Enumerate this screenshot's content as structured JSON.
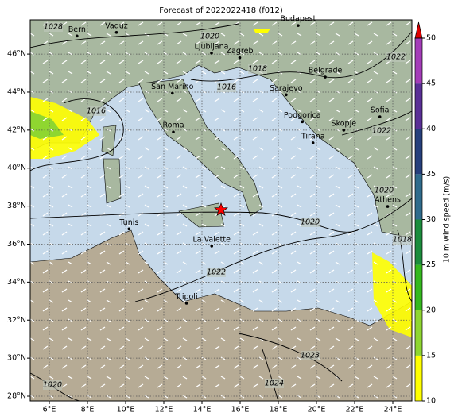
{
  "chart_data": {
    "type": "map",
    "title": "Forecast of 2022022418 (f012)",
    "xlim": [
      5,
      25
    ],
    "ylim": [
      27.75,
      47.8
    ],
    "xticks": [
      {
        "value": 6,
        "label": "6°E"
      },
      {
        "value": 8,
        "label": "8°E"
      },
      {
        "value": 10,
        "label": "10°E"
      },
      {
        "value": 12,
        "label": "12°E"
      },
      {
        "value": 14,
        "label": "14°E"
      },
      {
        "value": 16,
        "label": "16°E"
      },
      {
        "value": 18,
        "label": "18°E"
      },
      {
        "value": 20,
        "label": "20°E"
      },
      {
        "value": 22,
        "label": "22°E"
      },
      {
        "value": 24,
        "label": "24°E"
      }
    ],
    "yticks": [
      {
        "value": 28,
        "label": "28°N"
      },
      {
        "value": 30,
        "label": "30°N"
      },
      {
        "value": 32,
        "label": "32°N"
      },
      {
        "value": 34,
        "label": "34°N"
      },
      {
        "value": 36,
        "label": "36°N"
      },
      {
        "value": 38,
        "label": "38°N"
      },
      {
        "value": 40,
        "label": "40°N"
      },
      {
        "value": 42,
        "label": "42°N"
      },
      {
        "value": 44,
        "label": "44°N"
      },
      {
        "value": 46,
        "label": "46°N"
      }
    ],
    "grid": true,
    "cities": [
      {
        "name": "Bern",
        "lon": 7.45,
        "lat": 46.95
      },
      {
        "name": "Vaduz",
        "lon": 9.52,
        "lat": 47.14
      },
      {
        "name": "Budapest",
        "lon": 19.04,
        "lat": 47.5
      },
      {
        "name": "Ljubljana",
        "lon": 14.5,
        "lat": 46.05
      },
      {
        "name": "Zagreb",
        "lon": 15.98,
        "lat": 45.81
      },
      {
        "name": "San Marino",
        "lon": 12.45,
        "lat": 43.94
      },
      {
        "name": "Belgrade",
        "lon": 20.46,
        "lat": 44.79
      },
      {
        "name": "Sarajevo",
        "lon": 18.41,
        "lat": 43.86
      },
      {
        "name": "Roma",
        "lon": 12.5,
        "lat": 41.9
      },
      {
        "name": "Podgorica",
        "lon": 19.26,
        "lat": 42.44
      },
      {
        "name": "Skopje",
        "lon": 21.43,
        "lat": 42.0
      },
      {
        "name": "Sofia",
        "lon": 23.32,
        "lat": 42.7
      },
      {
        "name": "Tirana",
        "lon": 19.82,
        "lat": 41.33
      },
      {
        "name": "Athens",
        "lon": 23.73,
        "lat": 37.98
      },
      {
        "name": "Tunis",
        "lon": 10.18,
        "lat": 36.8
      },
      {
        "name": "La Valette",
        "lon": 14.51,
        "lat": 35.9
      },
      {
        "name": "Tripoli",
        "lon": 13.19,
        "lat": 32.89
      }
    ],
    "marker": {
      "lon": 15.0,
      "lat": 37.8,
      "color": "#ff0000"
    },
    "isobar_labels": [
      "1028",
      "1020",
      "1016",
      "1018",
      "1016",
      "1022",
      "1020",
      "1022",
      "1018",
      "1023",
      "1024",
      "1020",
      "1022",
      "1020"
    ],
    "colorbar": {
      "label": "10 m wind speed (m/s)",
      "lim": [
        10,
        50
      ],
      "ticks": [
        10,
        15,
        20,
        25,
        30,
        35,
        40,
        45,
        50
      ],
      "colors": [
        "#ffff00",
        "#8fd630",
        "#34b81e",
        "#1b8c3c",
        "#2f6b8c",
        "#263f7c",
        "#5a2f96",
        "#a43cb8"
      ],
      "extend_color": "#e00000"
    }
  }
}
